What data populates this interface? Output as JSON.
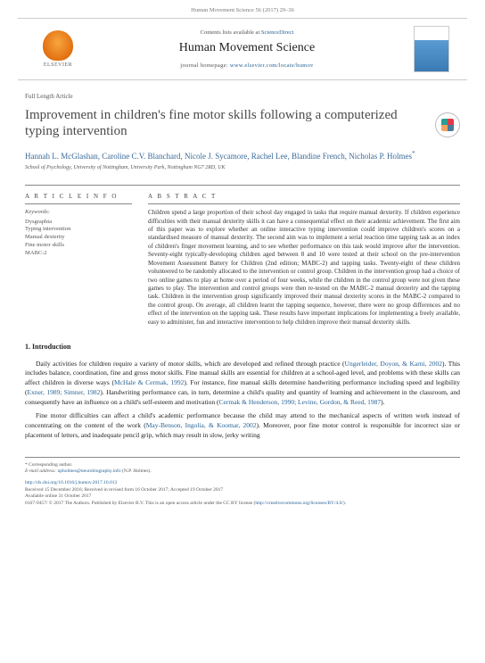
{
  "page_header": "Human Movement Science 56 (2017) 29–36",
  "banner": {
    "contents_prefix": "Contents lists available at ",
    "contents_link": "ScienceDirect",
    "journal_name": "Human Movement Science",
    "homepage_prefix": "journal homepage: ",
    "homepage_url": "www.elsevier.com/locate/humov",
    "publisher_label": "ELSEVIER"
  },
  "article_type": "Full Length Article",
  "title": "Improvement in children's fine motor skills following a computerized typing intervention",
  "authors": "Hannah L. McGlashan, Caroline C.V. Blanchard, Nicole J. Sycamore, Rachel Lee, Blandine French, Nicholas P. Holmes",
  "author_marker": "*",
  "affiliation": "School of Psychology, University of Nottingham, University Park, Nottingham NG7 2RD, UK",
  "info_head": "A R T I C L E  I N F O",
  "abstract_head": "A B S T R A C T",
  "keywords_label": "Keywords:",
  "keywords": [
    "Dysgraphia",
    "Typing intervention",
    "Manual dexterity",
    "Fine motor skills",
    "MABC-2"
  ],
  "abstract": "Children spend a large proportion of their school day engaged in tasks that require manual dexterity. If children experience difficulties with their manual dexterity skills it can have a consequential effect on their academic achievement. The first aim of this paper was to explore whether an online interactive typing intervention could improve children's scores on a standardised measure of manual dexterity. The second aim was to implement a serial reaction time tapping task as an index of children's finger movement learning, and to see whether performance on this task would improve after the intervention. Seventy-eight typically-developing children aged between 8 and 10 were tested at their school on the pre-intervention Movement Assessment Battery for Children (2nd edition; MABC-2) and tapping tasks. Twenty-eight of these children volunteered to be randomly allocated to the intervention or control group. Children in the intervention group had a choice of two online games to play at home over a period of four weeks, while the children in the control group were not given these games to play. The intervention and control groups were then re-tested on the MABC-2 manual dexterity and the tapping task. Children in the intervention group significantly improved their manual dexterity scores in the MABC-2 compared to the control group. On average, all children learnt the tapping sequence, however, there were no group differences and no effect of the intervention on the tapping task. These results have important implications for implementing a freely available, easy to administer, fun and interactive intervention to help children improve their manual dexterity skills.",
  "intro_number": "1.",
  "intro_title": "Introduction",
  "intro": {
    "p1_a": "Daily activities for children require a variety of motor skills, which are developed and refined through practice (",
    "p1_cite1": "Ungerleider, Doyon, & Karni, 2002",
    "p1_b": "). This includes balance, coordination, fine and gross motor skills. Fine manual skills are essential for children at a school-aged level, and problems with these skills can affect children in diverse ways (",
    "p1_cite2": "McHale & Cermak, 1992",
    "p1_c": "). For instance, fine manual skills determine handwriting performance including speed and legibility (",
    "p1_cite3": "Exner, 1989; Simner, 1982",
    "p1_d": "). Handwriting performance can, in turn, determine a child's quality and quantity of learning and achievement in the classroom, and consequently have an influence on a child's self-esteem and motivation (",
    "p1_cite4": "Cermak & Henderson, 1990; Levine, Gordon, & Reed, 1987",
    "p1_e": ").",
    "p2_a": "Fine motor difficulties can affect a child's academic performance because the child may attend to the mechanical aspects of written work instead of concentrating on the content of the work (",
    "p2_cite1": "May-Benson, Ingolia, & Koomar, 2002",
    "p2_b": "). Moreover, poor fine motor control is responsible for incorrect size or placement of letters, and inadequate pencil grip, which may result in slow, jerky writing"
  },
  "footer": {
    "corresponding_label": "* Corresponding author.",
    "email_label": "E-mail address: ",
    "email": "npholmes@neurobiography.info",
    "email_person": " (N.P. Holmes).",
    "doi_prefix": "http://dx.doi.org/",
    "doi": "10.1016/j.humov.2017.10.013",
    "history": "Received 15 December 2016; Received in revised form 16 October 2017; Accepted 19 October 2017",
    "available": "Available online 31 October 2017",
    "issn_line_a": "0167-9457/ © 2017 The Authors. Published by Elsevier B.V. This is an open access article under the CC BY license (",
    "issn_link": "http://creativecommons.org/licenses/BY/4.0/",
    "issn_line_b": ")."
  },
  "colors": {
    "link": "#2a6496",
    "text": "#222222",
    "muted": "#555555",
    "border": "#888888",
    "author": "#3a6a9a"
  }
}
